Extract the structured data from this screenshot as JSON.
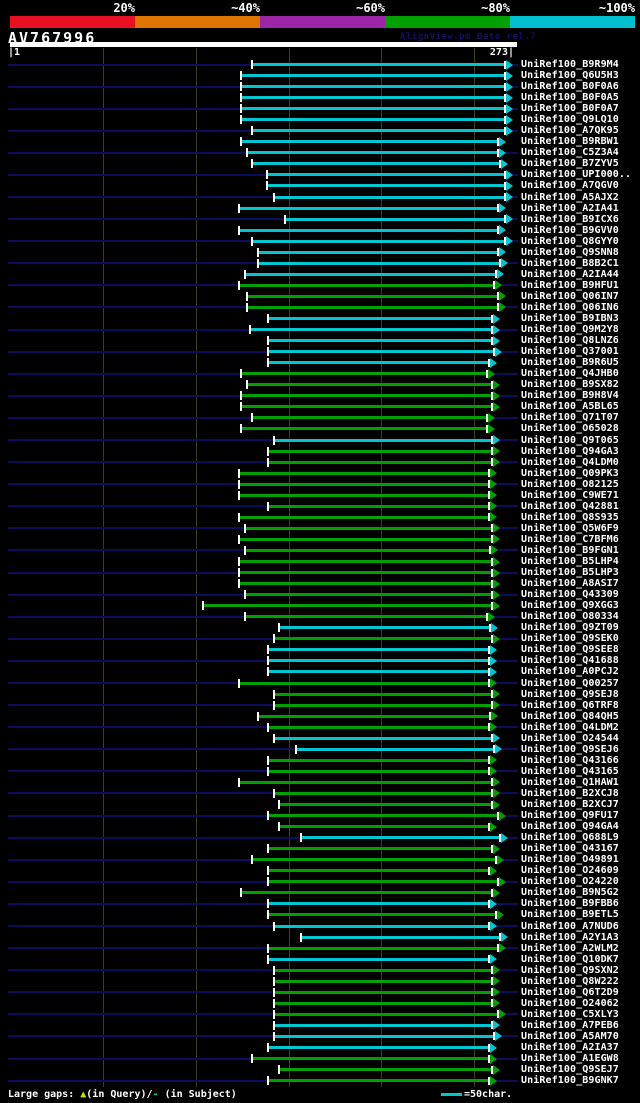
{
  "header": {
    "identity_scale": [
      {
        "label": "20%",
        "color": "#e81123"
      },
      {
        "label": "~40%",
        "color": "#dd7500"
      },
      {
        "label": "~60%",
        "color": "#9b26a8"
      },
      {
        "label": "~80%",
        "color": "#00a000"
      },
      {
        "label": "~100%",
        "color": "#00bfcf"
      }
    ]
  },
  "query": {
    "name": "AV767996",
    "watermark": "AlignView.pm Beta rel.7",
    "ruler_left": "|1",
    "ruler_right": "273|"
  },
  "footer": {
    "gaps_label": "Large gaps: ",
    "query_gap_symbol": "▲",
    "query_gap_text": "(in Query)/",
    "subject_gap_symbol": "-",
    "subject_gap_text": " (in Subject)",
    "bar_scale_text": "=50char."
  },
  "colors": {
    "background": "#000000",
    "cyan": "#00c6d2",
    "green": "#00a000",
    "guide": "#0d0d5e",
    "grid": "#3c3c16",
    "watermark": "#11115e",
    "gap_query_symbol": "#d8d800"
  },
  "chart_data": {
    "type": "bar",
    "orientation": "horizontal-span",
    "title": "AV767996 alignment coverage",
    "query_name": "AV767996",
    "query_length": 273,
    "xlim": [
      1,
      273
    ],
    "ruler_interval_chars": 50,
    "color_meaning": {
      "cyan": "~100% identity",
      "green": "~80% identity"
    },
    "legend_position": "top",
    "grid": true,
    "hits": [
      {
        "label": "UniRef100_B9R9M4",
        "color": "cyan",
        "start": 134,
        "end": 273
      },
      {
        "label": "UniRef100_Q6U5H3",
        "color": "cyan",
        "start": 128,
        "end": 273
      },
      {
        "label": "UniRef100_B0F0A6",
        "color": "cyan",
        "start": 128,
        "end": 273
      },
      {
        "label": "UniRef100_B0F0A5",
        "color": "cyan",
        "start": 128,
        "end": 273
      },
      {
        "label": "UniRef100_B0F0A7",
        "color": "cyan",
        "start": 128,
        "end": 273
      },
      {
        "label": "UniRef100_Q9LQ10",
        "color": "cyan",
        "start": 128,
        "end": 273
      },
      {
        "label": "UniRef100_A7QK95",
        "color": "cyan",
        "start": 134,
        "end": 273
      },
      {
        "label": "UniRef100_B9RBW1",
        "color": "cyan",
        "start": 128,
        "end": 269
      },
      {
        "label": "UniRef100_C5Z3A4",
        "color": "cyan",
        "start": 131,
        "end": 269
      },
      {
        "label": "UniRef100_B7ZYV5",
        "color": "cyan",
        "start": 134,
        "end": 270
      },
      {
        "label": "UniRef100_UPI000..",
        "color": "cyan",
        "start": 142,
        "end": 273
      },
      {
        "label": "UniRef100_A7QGV0",
        "color": "cyan",
        "start": 142,
        "end": 273
      },
      {
        "label": "UniRef100_A5AJX2",
        "color": "cyan",
        "start": 146,
        "end": 273
      },
      {
        "label": "UniRef100_A2IA41",
        "color": "cyan",
        "start": 127,
        "end": 269
      },
      {
        "label": "UniRef100_B9ICX6",
        "color": "cyan",
        "start": 152,
        "end": 273
      },
      {
        "label": "UniRef100_B9GVV0",
        "color": "cyan",
        "start": 127,
        "end": 269
      },
      {
        "label": "UniRef100_Q8GYY0",
        "color": "cyan",
        "start": 134,
        "end": 273
      },
      {
        "label": "UniRef100_Q9SNN8",
        "color": "cyan",
        "start": 137,
        "end": 269
      },
      {
        "label": "UniRef100_B8B2C1",
        "color": "cyan",
        "start": 137,
        "end": 270
      },
      {
        "label": "UniRef100_A2IA44",
        "color": "cyan",
        "start": 130,
        "end": 268
      },
      {
        "label": "UniRef100_B9HFU1",
        "color": "green",
        "start": 127,
        "end": 267
      },
      {
        "label": "UniRef100_Q06IN7",
        "color": "green",
        "start": 131,
        "end": 269
      },
      {
        "label": "UniRef100_Q06IN6",
        "color": "green",
        "start": 131,
        "end": 269
      },
      {
        "label": "UniRef100_B9IBN3",
        "color": "cyan",
        "start": 143,
        "end": 266
      },
      {
        "label": "UniRef100_Q9M2Y8",
        "color": "cyan",
        "start": 133,
        "end": 266
      },
      {
        "label": "UniRef100_Q8LNZ6",
        "color": "cyan",
        "start": 143,
        "end": 266
      },
      {
        "label": "UniRef100_Q37001",
        "color": "cyan",
        "start": 143,
        "end": 267
      },
      {
        "label": "UniRef100_B9R6U5",
        "color": "cyan",
        "start": 143,
        "end": 264
      },
      {
        "label": "UniRef100_Q4JHB0",
        "color": "green",
        "start": 128,
        "end": 263
      },
      {
        "label": "UniRef100_B9SX82",
        "color": "green",
        "start": 131,
        "end": 266
      },
      {
        "label": "UniRef100_B9H8V4",
        "color": "green",
        "start": 128,
        "end": 266
      },
      {
        "label": "UniRef100_A5BL65",
        "color": "green",
        "start": 128,
        "end": 266
      },
      {
        "label": "UniRef100_Q71T07",
        "color": "green",
        "start": 134,
        "end": 263
      },
      {
        "label": "UniRef100_O65028",
        "color": "green",
        "start": 128,
        "end": 263
      },
      {
        "label": "UniRef100_Q9T065",
        "color": "cyan",
        "start": 146,
        "end": 266
      },
      {
        "label": "UniRef100_Q94GA3",
        "color": "green",
        "start": 143,
        "end": 266
      },
      {
        "label": "UniRef100_Q4LDM0",
        "color": "green",
        "start": 143,
        "end": 266
      },
      {
        "label": "UniRef100_Q09PK3",
        "color": "green",
        "start": 127,
        "end": 264
      },
      {
        "label": "UniRef100_O82125",
        "color": "green",
        "start": 127,
        "end": 264
      },
      {
        "label": "UniRef100_C9WE71",
        "color": "green",
        "start": 127,
        "end": 264
      },
      {
        "label": "UniRef100_Q42881",
        "color": "green",
        "start": 143,
        "end": 264
      },
      {
        "label": "UniRef100_Q8S935",
        "color": "green",
        "start": 127,
        "end": 264
      },
      {
        "label": "UniRef100_Q5W6F9",
        "color": "green",
        "start": 130,
        "end": 266
      },
      {
        "label": "UniRef100_C7BFM6",
        "color": "green",
        "start": 127,
        "end": 266
      },
      {
        "label": "UniRef100_B9FGN1",
        "color": "green",
        "start": 130,
        "end": 265
      },
      {
        "label": "UniRef100_B5LHP4",
        "color": "green",
        "start": 127,
        "end": 266
      },
      {
        "label": "UniRef100_B5LHP3",
        "color": "green",
        "start": 127,
        "end": 266
      },
      {
        "label": "UniRef100_A8ASI7",
        "color": "green",
        "start": 127,
        "end": 266
      },
      {
        "label": "UniRef100_Q43309",
        "color": "green",
        "start": 130,
        "end": 266
      },
      {
        "label": "UniRef100_Q9XGG3",
        "color": "green",
        "start": 107,
        "end": 266
      },
      {
        "label": "UniRef100_O80334",
        "color": "green",
        "start": 130,
        "end": 263
      },
      {
        "label": "UniRef100_Q9ZT09",
        "color": "cyan",
        "start": 149,
        "end": 265
      },
      {
        "label": "UniRef100_Q9SEK0",
        "color": "green",
        "start": 146,
        "end": 266
      },
      {
        "label": "UniRef100_Q9SEE8",
        "color": "cyan",
        "start": 143,
        "end": 264
      },
      {
        "label": "UniRef100_Q41688",
        "color": "cyan",
        "start": 143,
        "end": 264
      },
      {
        "label": "UniRef100_A0PCJ2",
        "color": "cyan",
        "start": 143,
        "end": 264
      },
      {
        "label": "UniRef100_Q00257",
        "color": "green",
        "start": 127,
        "end": 264
      },
      {
        "label": "UniRef100_Q9SEJ8",
        "color": "green",
        "start": 146,
        "end": 266
      },
      {
        "label": "UniRef100_Q6TRF8",
        "color": "green",
        "start": 146,
        "end": 266
      },
      {
        "label": "UniRef100_Q84QH5",
        "color": "green",
        "start": 137,
        "end": 265
      },
      {
        "label": "UniRef100_Q4LDM2",
        "color": "green",
        "start": 143,
        "end": 264
      },
      {
        "label": "UniRef100_O24544",
        "color": "cyan",
        "start": 146,
        "end": 266
      },
      {
        "label": "UniRef100_Q9SEJ6",
        "color": "cyan",
        "start": 158,
        "end": 267
      },
      {
        "label": "UniRef100_Q43166",
        "color": "green",
        "start": 143,
        "end": 264
      },
      {
        "label": "UniRef100_Q43165",
        "color": "green",
        "start": 143,
        "end": 264
      },
      {
        "label": "UniRef100_Q1HAW1",
        "color": "green",
        "start": 127,
        "end": 266
      },
      {
        "label": "UniRef100_B2XCJ8",
        "color": "green",
        "start": 146,
        "end": 266
      },
      {
        "label": "UniRef100_B2XCJ7",
        "color": "green",
        "start": 149,
        "end": 266
      },
      {
        "label": "UniRef100_Q9FU17",
        "color": "green",
        "start": 143,
        "end": 269
      },
      {
        "label": "UniRef100_Q94GA4",
        "color": "green",
        "start": 149,
        "end": 264
      },
      {
        "label": "UniRef100_Q688L9",
        "color": "cyan",
        "start": 161,
        "end": 270
      },
      {
        "label": "UniRef100_Q43167",
        "color": "green",
        "start": 143,
        "end": 266
      },
      {
        "label": "UniRef100_O49891",
        "color": "green",
        "start": 134,
        "end": 268
      },
      {
        "label": "UniRef100_O24609",
        "color": "green",
        "start": 143,
        "end": 264
      },
      {
        "label": "UniRef100_O24220",
        "color": "green",
        "start": 143,
        "end": 269
      },
      {
        "label": "UniRef100_B9N5G2",
        "color": "green",
        "start": 128,
        "end": 266
      },
      {
        "label": "UniRef100_B9FBB6",
        "color": "cyan",
        "start": 143,
        "end": 264
      },
      {
        "label": "UniRef100_B9ETL5",
        "color": "green",
        "start": 143,
        "end": 268
      },
      {
        "label": "UniRef100_A7NUD6",
        "color": "cyan",
        "start": 146,
        "end": 264
      },
      {
        "label": "UniRef100_A2Y1A3",
        "color": "cyan",
        "start": 161,
        "end": 270
      },
      {
        "label": "UniRef100_A2WLM2",
        "color": "green",
        "start": 143,
        "end": 269
      },
      {
        "label": "UniRef100_Q10DK7",
        "color": "cyan",
        "start": 143,
        "end": 264
      },
      {
        "label": "UniRef100_Q9SXN2",
        "color": "green",
        "start": 146,
        "end": 266
      },
      {
        "label": "UniRef100_Q8W222",
        "color": "green",
        "start": 146,
        "end": 266
      },
      {
        "label": "UniRef100_Q6T2D9",
        "color": "green",
        "start": 146,
        "end": 266
      },
      {
        "label": "UniRef100_O24062",
        "color": "green",
        "start": 146,
        "end": 266
      },
      {
        "label": "UniRef100_C5XLY3",
        "color": "green",
        "start": 146,
        "end": 269
      },
      {
        "label": "UniRef100_A7PEB6",
        "color": "cyan",
        "start": 146,
        "end": 266
      },
      {
        "label": "UniRef100_A5AM70",
        "color": "cyan",
        "start": 146,
        "end": 267
      },
      {
        "label": "UniRef100_A2IA37",
        "color": "cyan",
        "start": 143,
        "end": 264
      },
      {
        "label": "UniRef100_A1EGW8",
        "color": "green",
        "start": 134,
        "end": 264
      },
      {
        "label": "UniRef100_Q9SEJ7",
        "color": "green",
        "start": 149,
        "end": 266
      },
      {
        "label": "UniRef100_B9GNK7",
        "color": "green",
        "start": 143,
        "end": 264
      }
    ]
  }
}
